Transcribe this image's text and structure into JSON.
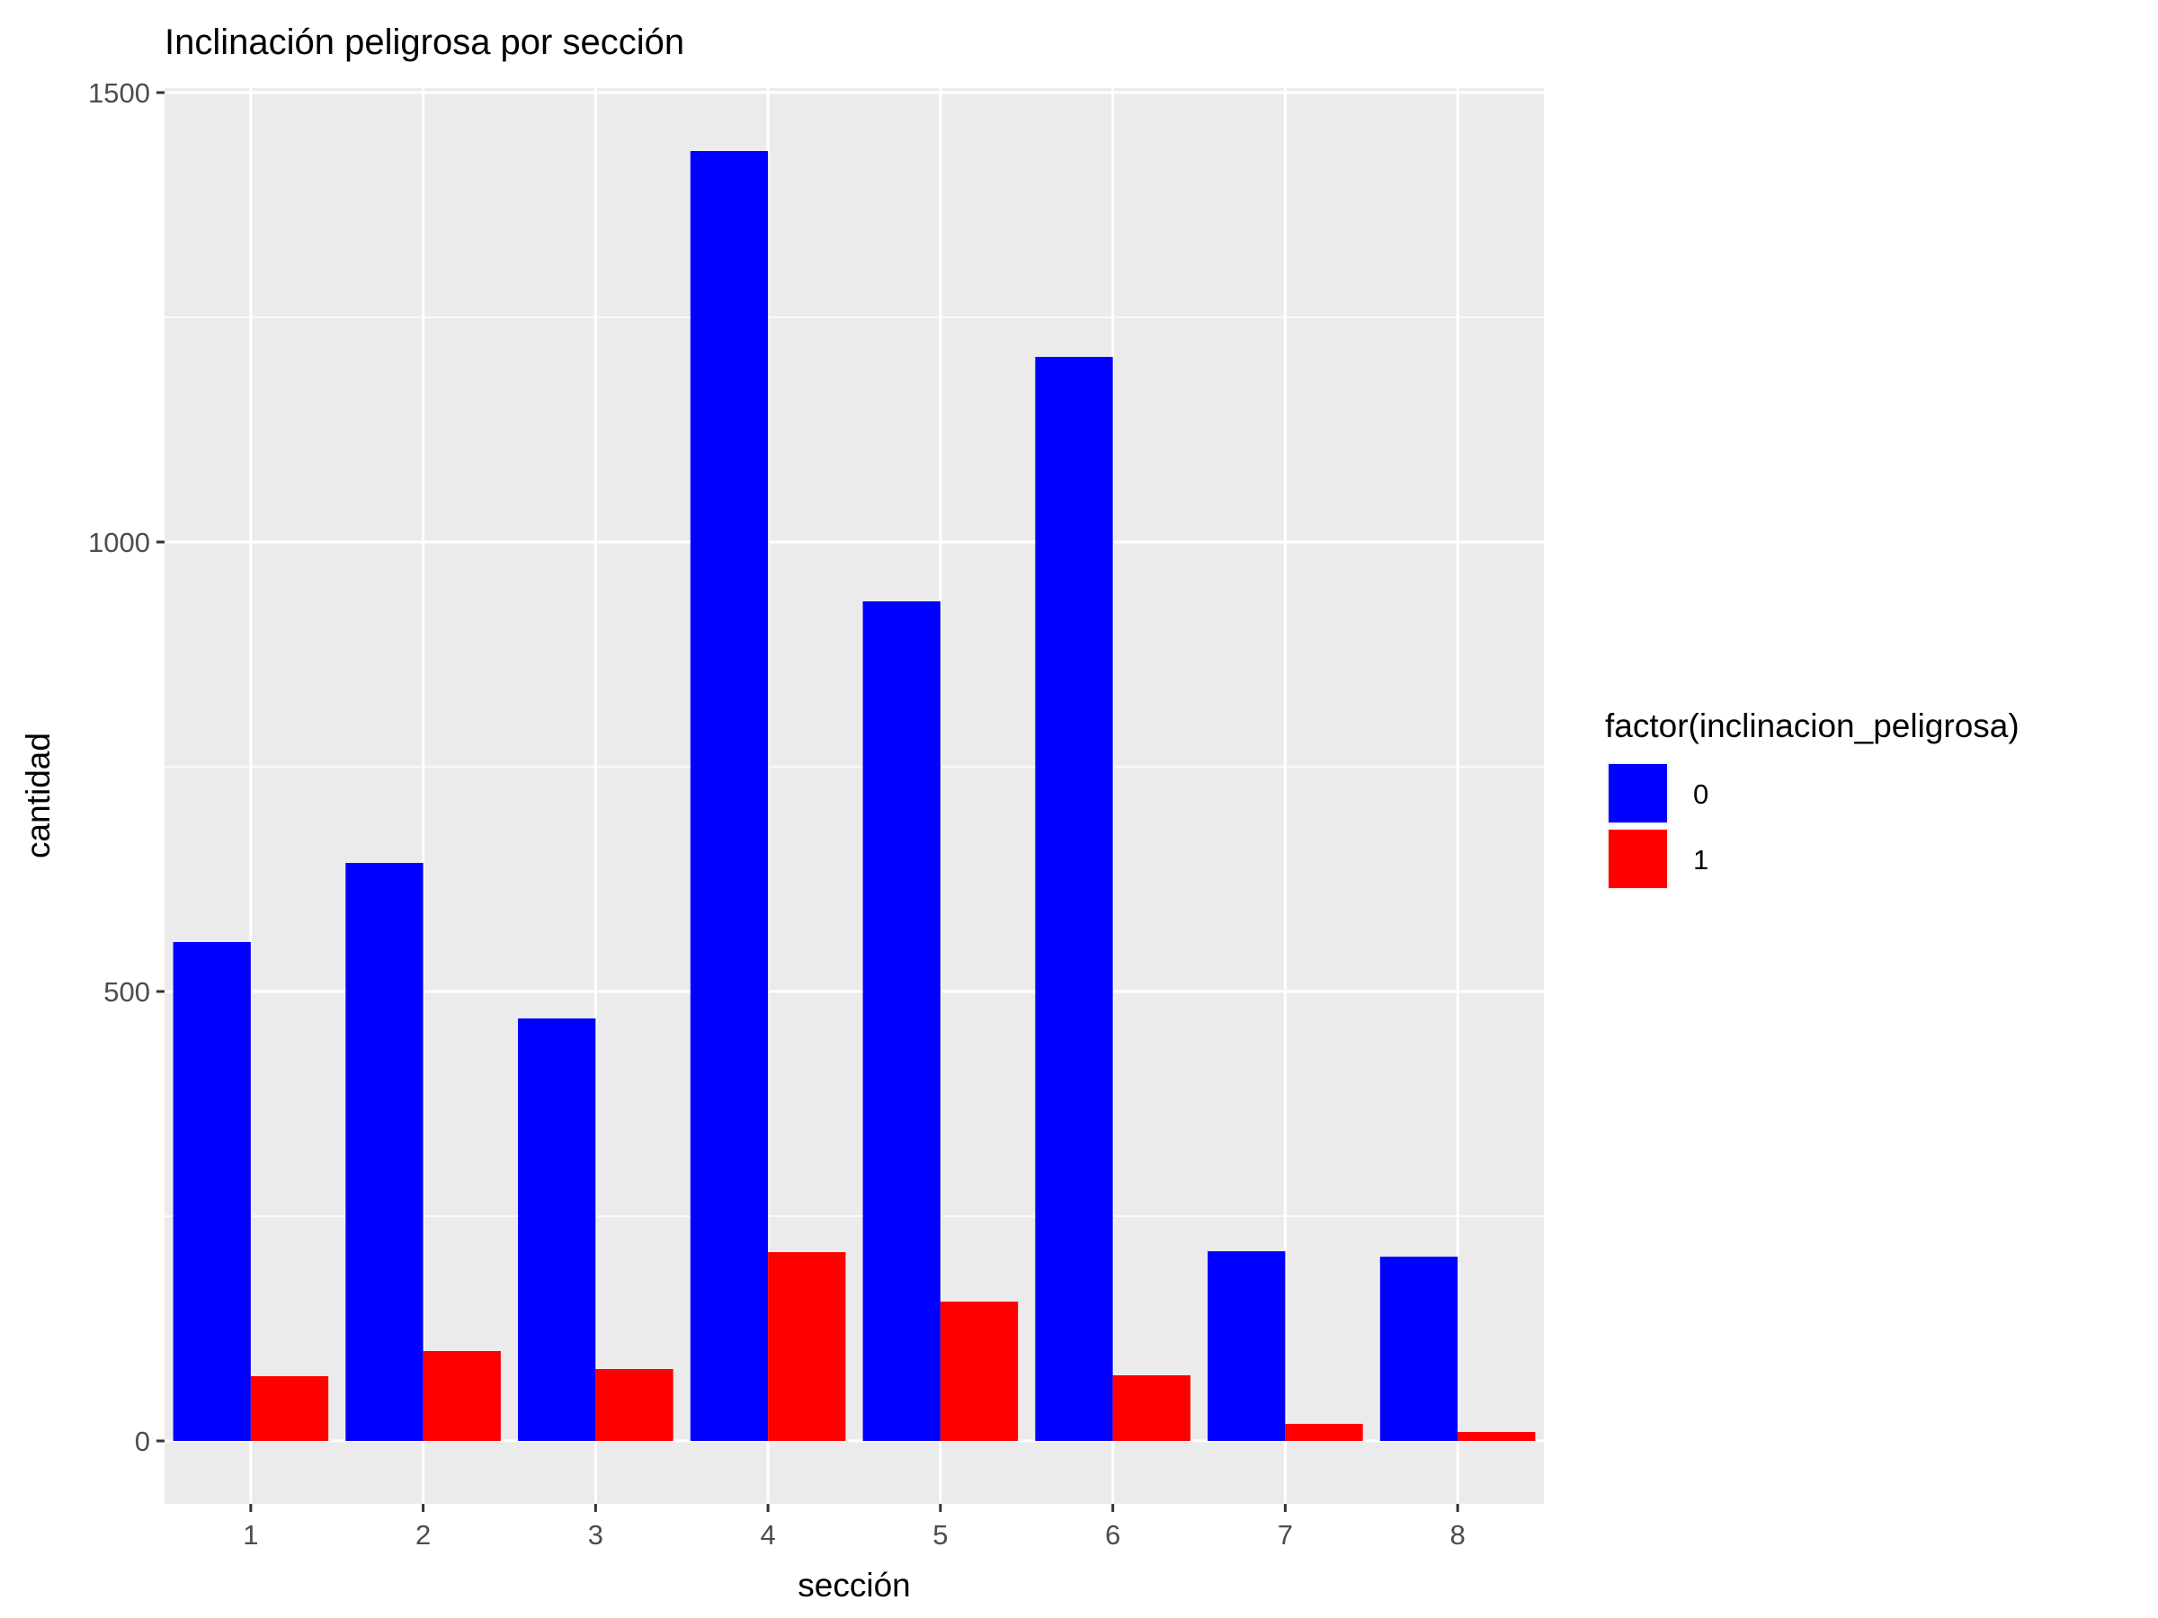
{
  "chart_data": {
    "type": "bar",
    "title": "Inclinación peligrosa por sección",
    "xlabel": "sección",
    "ylabel": "cantidad",
    "categories": [
      "1",
      "2",
      "3",
      "4",
      "5",
      "6",
      "7",
      "8"
    ],
    "series": [
      {
        "name": "0",
        "color": "#0000ff",
        "values": [
          555,
          643,
          470,
          1435,
          934,
          1206,
          211,
          205
        ]
      },
      {
        "name": "1",
        "color": "#ff0000",
        "values": [
          72,
          100,
          80,
          210,
          155,
          73,
          19,
          10
        ]
      }
    ],
    "ylim": [
      -70,
      1505
    ],
    "yticks": [
      0,
      500,
      1000,
      1500
    ],
    "yticks_labels": [
      "0",
      "500",
      "1000",
      "1500"
    ],
    "grid": true,
    "legend": {
      "title": "factor(inclinacion_peligrosa)",
      "position": "right"
    },
    "panel_background": "#ebebeb"
  }
}
